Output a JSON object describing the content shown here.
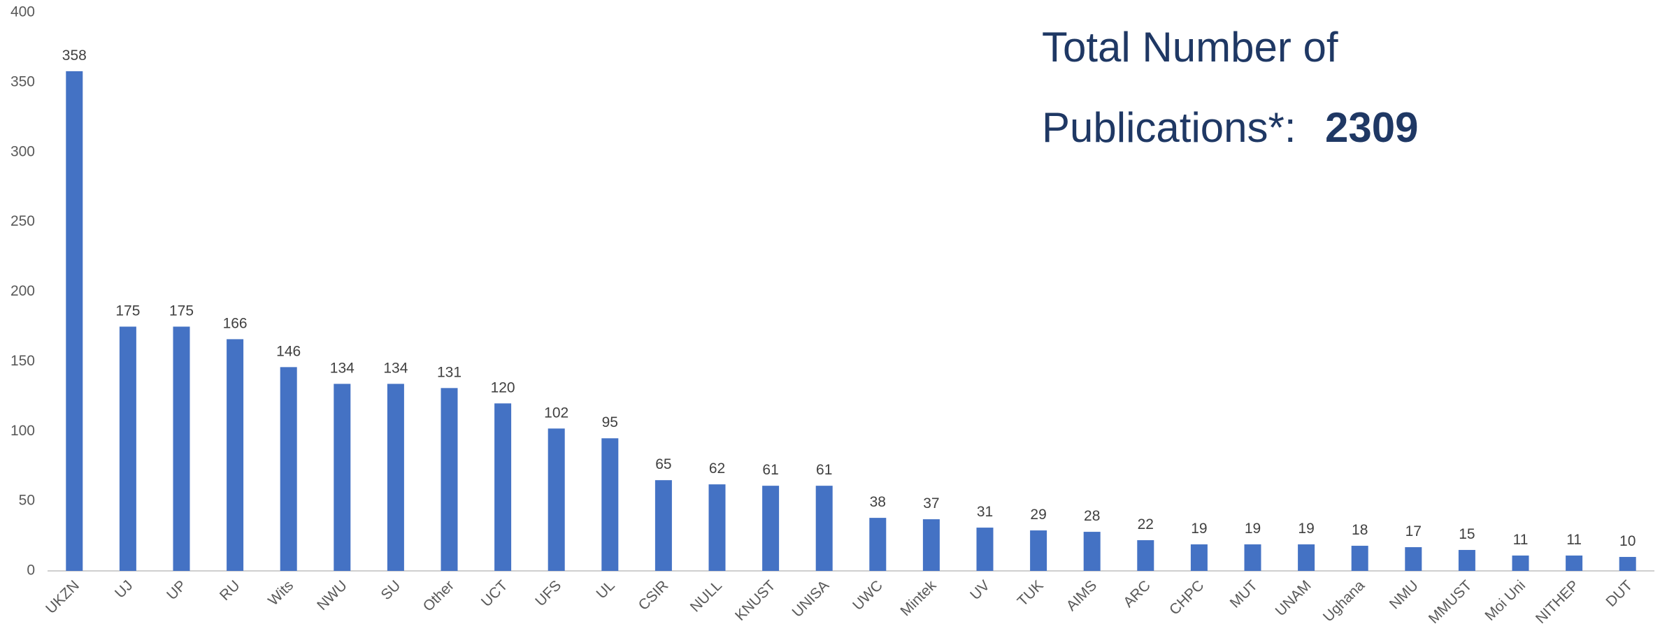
{
  "chart_data": {
    "type": "bar",
    "annotation_lines": [
      "Total Number of",
      "Publications*:"
    ],
    "total": 2309,
    "categories": [
      "UKZN",
      "UJ",
      "UP",
      "RU",
      "Wits",
      "NWU",
      "SU",
      "Other",
      "UCT",
      "UFS",
      "UL",
      "CSIR",
      "NULL",
      "KNUST",
      "UNISA",
      "UWC",
      "Mintek",
      "UV",
      "TUK",
      "AIMS",
      "ARC",
      "CHPC",
      "MUT",
      "UNAM",
      "Ughana",
      "NMU",
      "MMUST",
      "Moi Uni",
      "NITHEP",
      "DUT"
    ],
    "values": [
      358,
      175,
      175,
      166,
      146,
      134,
      134,
      131,
      120,
      102,
      95,
      65,
      62,
      61,
      61,
      38,
      37,
      31,
      29,
      28,
      22,
      19,
      19,
      19,
      18,
      17,
      15,
      11,
      11,
      10
    ],
    "color": "#4472c4",
    "ylim": [
      0,
      400
    ],
    "yticks": [
      0,
      50,
      100,
      150,
      200,
      250,
      300,
      350,
      400
    ],
    "grid": false
  }
}
